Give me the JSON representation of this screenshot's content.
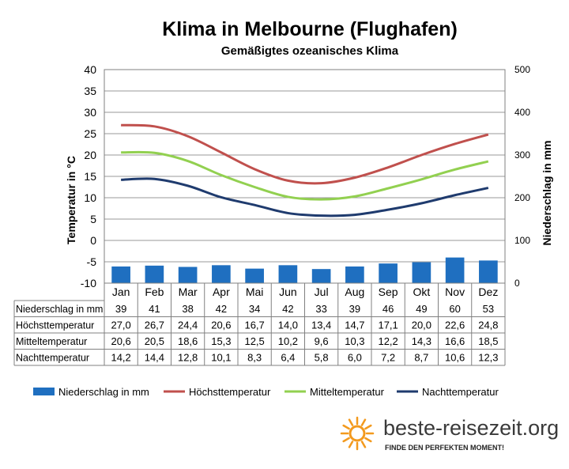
{
  "chart_data": {
    "type": "bar+line",
    "title": "Klima in Melbourne (Flughafen)",
    "subtitle": "Gemäßigtes ozeanisches Klima",
    "ylabel_left": "Temperatur in °C",
    "ylabel_right": "Niederschlag in mm",
    "ylim_left": [
      -10,
      40
    ],
    "yticks_left": [
      -10,
      -5,
      0,
      5,
      10,
      15,
      20,
      25,
      30,
      35,
      40
    ],
    "ylim_right": [
      0,
      500
    ],
    "yticks_right": [
      0,
      100,
      200,
      300,
      400,
      500
    ],
    "grid": true,
    "legend_position": "bottom",
    "categories": [
      "Jan",
      "Feb",
      "Mar",
      "Apr",
      "Mai",
      "Jun",
      "Jul",
      "Aug",
      "Sep",
      "Okt",
      "Nov",
      "Dez"
    ],
    "series": [
      {
        "name": "Niederschlag in mm",
        "kind": "bar",
        "axis": "right",
        "color": "#1f6fc0",
        "values": [
          39,
          41,
          38,
          42,
          34,
          42,
          33,
          39,
          46,
          49,
          60,
          53
        ],
        "labels": [
          "39",
          "41",
          "38",
          "42",
          "34",
          "42",
          "33",
          "39",
          "46",
          "49",
          "60",
          "53"
        ]
      },
      {
        "name": "Höchsttemperatur",
        "kind": "line",
        "axis": "left",
        "color": "#c0504d",
        "values": [
          27.0,
          26.7,
          24.4,
          20.6,
          16.7,
          14.0,
          13.4,
          14.7,
          17.1,
          20.0,
          22.6,
          24.8
        ],
        "labels": [
          "27,0",
          "26,7",
          "24,4",
          "20,6",
          "16,7",
          "14,0",
          "13,4",
          "14,7",
          "17,1",
          "20,0",
          "22,6",
          "24,8"
        ]
      },
      {
        "name": "Mitteltemperatur",
        "kind": "line",
        "axis": "left",
        "color": "#92d050",
        "values": [
          20.6,
          20.5,
          18.6,
          15.3,
          12.5,
          10.2,
          9.6,
          10.3,
          12.2,
          14.3,
          16.6,
          18.5
        ],
        "labels": [
          "20,6",
          "20,5",
          "18,6",
          "15,3",
          "12,5",
          "10,2",
          "9,6",
          "10,3",
          "12,2",
          "14,3",
          "16,6",
          "18,5"
        ]
      },
      {
        "name": "Nachttemperatur",
        "kind": "line",
        "axis": "left",
        "color": "#1f3b6e",
        "values": [
          14.2,
          14.4,
          12.8,
          10.1,
          8.3,
          6.4,
          5.8,
          6.0,
          7.2,
          8.7,
          10.6,
          12.3
        ],
        "labels": [
          "14,2",
          "14,4",
          "12,8",
          "10,1",
          "8,3",
          "6,4",
          "5,8",
          "6,0",
          "7,2",
          "8,7",
          "10,6",
          "12,3"
        ]
      }
    ]
  },
  "branding": {
    "site": "beste-reisezeit.org",
    "tagline": "FINDE DEN PERFEKTEN MOMENT!",
    "icon": "sun-icon"
  }
}
